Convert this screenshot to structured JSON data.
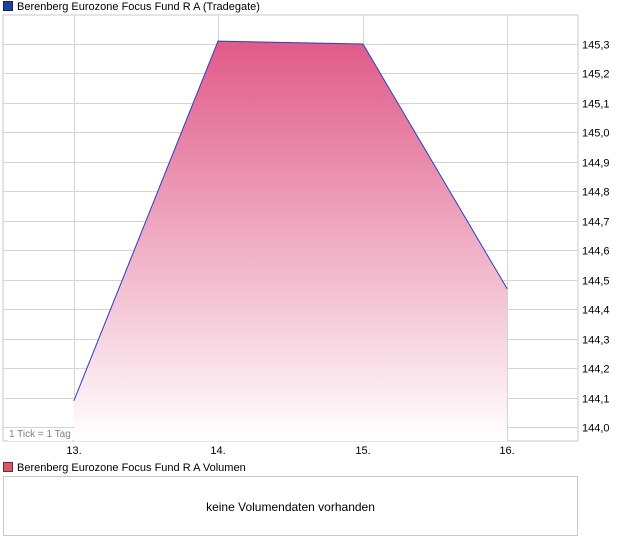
{
  "legend": {
    "price_label": "Berenberg Eurozone Focus Fund R A (Tradegate)",
    "volume_label": "Berenberg Eurozone Focus Fund R A Volumen"
  },
  "tick_note": "1 Tick = 1 Tag",
  "volume": {
    "message": "keine Volumendaten vorhanden"
  },
  "colors": {
    "line": "#2a3cc8",
    "fill_top": "#e05a88",
    "fill_bottom": "#ffffff",
    "grid": "#d4d4d4",
    "price_swatch": "#1f3f9e",
    "volume_swatch": "#d65a6a"
  },
  "chart_data": {
    "type": "area",
    "title": "Berenberg Eurozone Focus Fund R A (Tradegate)",
    "categories": [
      "13.",
      "14.",
      "15.",
      "16."
    ],
    "series": [
      {
        "name": "Berenberg Eurozone Focus Fund R A (Tradegate)",
        "values": [
          144.09,
          145.31,
          145.3,
          144.47
        ]
      }
    ],
    "yticks": [
      "144,0",
      "144,1",
      "144,2",
      "144,3",
      "144,4",
      "144,5",
      "144,6",
      "144,7",
      "144,8",
      "144,9",
      "145,0",
      "145,1",
      "145,2",
      "145,3"
    ],
    "ylim": [
      143.96,
      145.36
    ],
    "y_axis_side": "right",
    "grid": true
  }
}
